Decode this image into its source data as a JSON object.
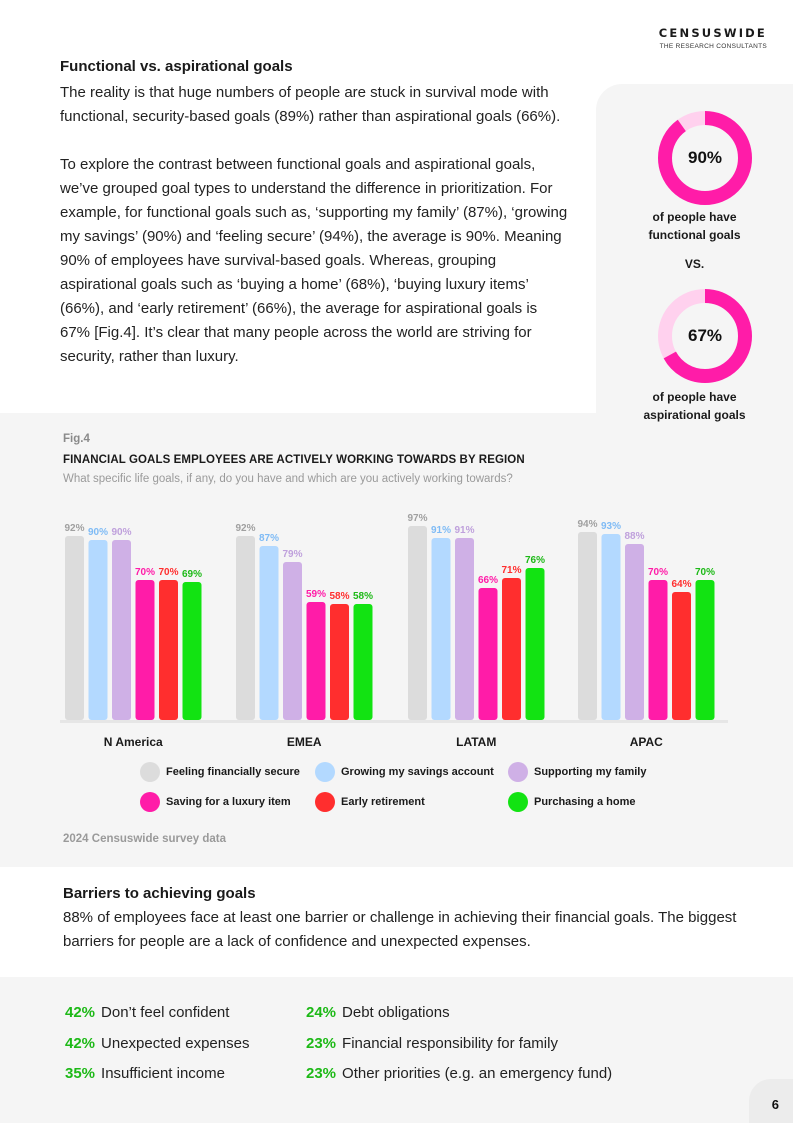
{
  "brand": {
    "name": "CENSUSWIDE",
    "tagline": "THE RESEARCH CONSULTANTS"
  },
  "intro": {
    "heading": "Functional vs. aspirational goals",
    "paragraph1": "The reality is that huge numbers of people are stuck in survival mode with functional, security-based goals (89%) rather than aspirational goals (66%).",
    "paragraph2": "To explore the contrast between functional goals and aspirational goals, we’ve grouped goal types to understand the difference in prioritization. For example, for functional goals such as, ‘supporting my family’ (87%), ‘growing my savings’ (90%) and ‘feeling secure’ (94%), the average is 90%. Meaning 90% of employees have survival-based goals. Whereas, grouping aspirational goals such as ‘buying a home’ (68%), ‘buying luxury items’ (66%), and ‘early retirement’ (66%), the average for aspirational goals is 67% [Fig.4]. It’s clear that many people across the world are striving for security, rather than luxury."
  },
  "donuts": {
    "functional": {
      "value": 0.9,
      "label": "90%",
      "caption_line1": "of people have",
      "caption_line2": "functional goals"
    },
    "vs": "VS.",
    "aspirational": {
      "value": 0.67,
      "label": "67%",
      "caption_line1": "of people have",
      "caption_line2": "aspirational goals"
    },
    "colors": {
      "fill": "#ff1ca8",
      "track": "#ffd1ee"
    }
  },
  "figure": {
    "label": "Fig.4",
    "title": "FINANCIAL GOALS EMPLOYEES ARE ACTIVELY WORKING TOWARDS BY REGION",
    "subtitle": "What specific life goals, if any, do you have and which are you actively working towards?",
    "source": "2024 Censuswide survey data"
  },
  "chart_data": {
    "type": "bar",
    "categories": [
      "N America",
      "EMEA",
      "LATAM",
      "APAC"
    ],
    "ylim": [
      0,
      100
    ],
    "grid": false,
    "legend_position": "bottom",
    "series": [
      {
        "name": "Feeling financially secure",
        "color": "#dcdcdc",
        "label_color": "#a0a0a0",
        "values": [
          92,
          92,
          97,
          94
        ]
      },
      {
        "name": "Growing my savings account",
        "color": "#b3d9ff",
        "label_color": "#7fbbf5",
        "values": [
          90,
          87,
          91,
          93
        ]
      },
      {
        "name": "Supporting my family",
        "color": "#cfb0e6",
        "label_color": "#bfa0dc",
        "values": [
          90,
          79,
          91,
          88
        ]
      },
      {
        "name": "Saving for a luxury item",
        "color": "#ff1ca8",
        "label_color": "#ff1ca8",
        "values": [
          70,
          59,
          66,
          70
        ]
      },
      {
        "name": "Early retirement",
        "color": "#ff2e2e",
        "label_color": "#ff2e2e",
        "values": [
          70,
          58,
          71,
          64
        ]
      },
      {
        "name": "Purchasing a home",
        "color": "#12e312",
        "label_color": "#1db917",
        "values": [
          69,
          58,
          76,
          70
        ]
      }
    ]
  },
  "barriers": {
    "heading": "Barriers to achieving goals",
    "text": "88% of employees face at least one barrier or challenge in achieving their financial goals. The biggest barriers for people are a lack of confidence and unexpected expenses.",
    "items": [
      {
        "pct": "42%",
        "label": "Don’t feel confident"
      },
      {
        "pct": "42%",
        "label": "Unexpected expenses"
      },
      {
        "pct": "35%",
        "label": "Insufficient income"
      },
      {
        "pct": "24%",
        "label": "Debt obligations"
      },
      {
        "pct": "23%",
        "label": "Financial responsibility for family"
      },
      {
        "pct": "23%",
        "label": "Other priorities (e.g. an emergency fund)"
      }
    ]
  },
  "page_number": "6"
}
